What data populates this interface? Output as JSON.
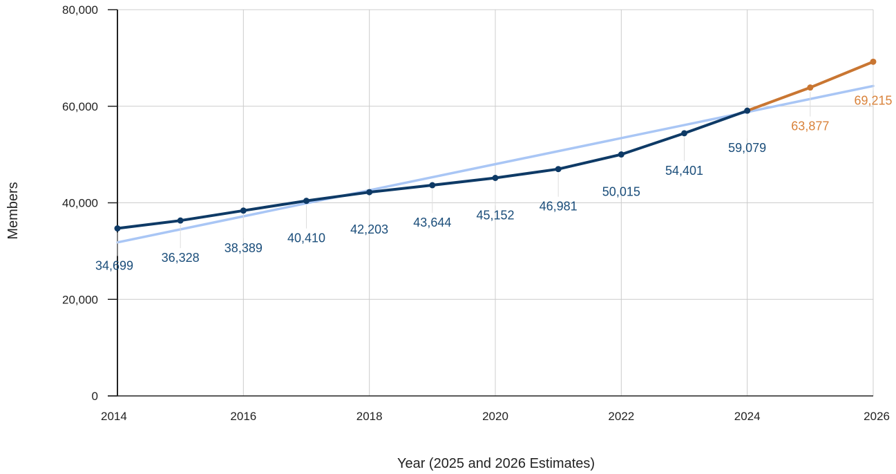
{
  "chart_data": {
    "type": "line",
    "title": "",
    "xlabel": "Year (2025 and 2026 Estimates)",
    "ylabel": "Members",
    "xlim": [
      2014,
      2026
    ],
    "ylim": [
      0,
      80000
    ],
    "x_ticks": [
      "2014",
      "2016",
      "2018",
      "2020",
      "2022",
      "2024",
      "2026"
    ],
    "y_ticks": [
      "0",
      "20,000",
      "40,000",
      "60,000",
      "80,000"
    ],
    "grid": true,
    "legend": "none",
    "series": [
      {
        "color": "#0e3a66",
        "label_color": "#1a4d7a",
        "points": [
          {
            "x": 2014,
            "y": 34699,
            "label": "34,699"
          },
          {
            "x": 2015,
            "y": 36328,
            "label": "36,328"
          },
          {
            "x": 2016,
            "y": 38389,
            "label": "38,389"
          },
          {
            "x": 2017,
            "y": 40410,
            "label": "40,410"
          },
          {
            "x": 2018,
            "y": 42203,
            "label": "42,203"
          },
          {
            "x": 2019,
            "y": 43644,
            "label": "43,644"
          },
          {
            "x": 2020,
            "y": 45152,
            "label": "45,152"
          },
          {
            "x": 2021,
            "y": 46981,
            "label": "46,981"
          },
          {
            "x": 2022,
            "y": 50015,
            "label": "50,015"
          },
          {
            "x": 2023,
            "y": 54401,
            "label": "54,401"
          },
          {
            "x": 2024,
            "y": 59079,
            "label": "59,079"
          }
        ]
      },
      {
        "color": "#c97632",
        "label_color": "#d9823a",
        "points": [
          {
            "x": 2024,
            "y": 59079,
            "label": ""
          },
          {
            "x": 2025,
            "y": 63877,
            "label": "63,877"
          },
          {
            "x": 2026,
            "y": 69215,
            "label": "69,215"
          }
        ]
      }
    ],
    "trendline": {
      "color": "#a9c6f5",
      "start": {
        "x": 2014,
        "y": 31800
      },
      "end": {
        "x": 2026,
        "y": 64200
      }
    }
  }
}
